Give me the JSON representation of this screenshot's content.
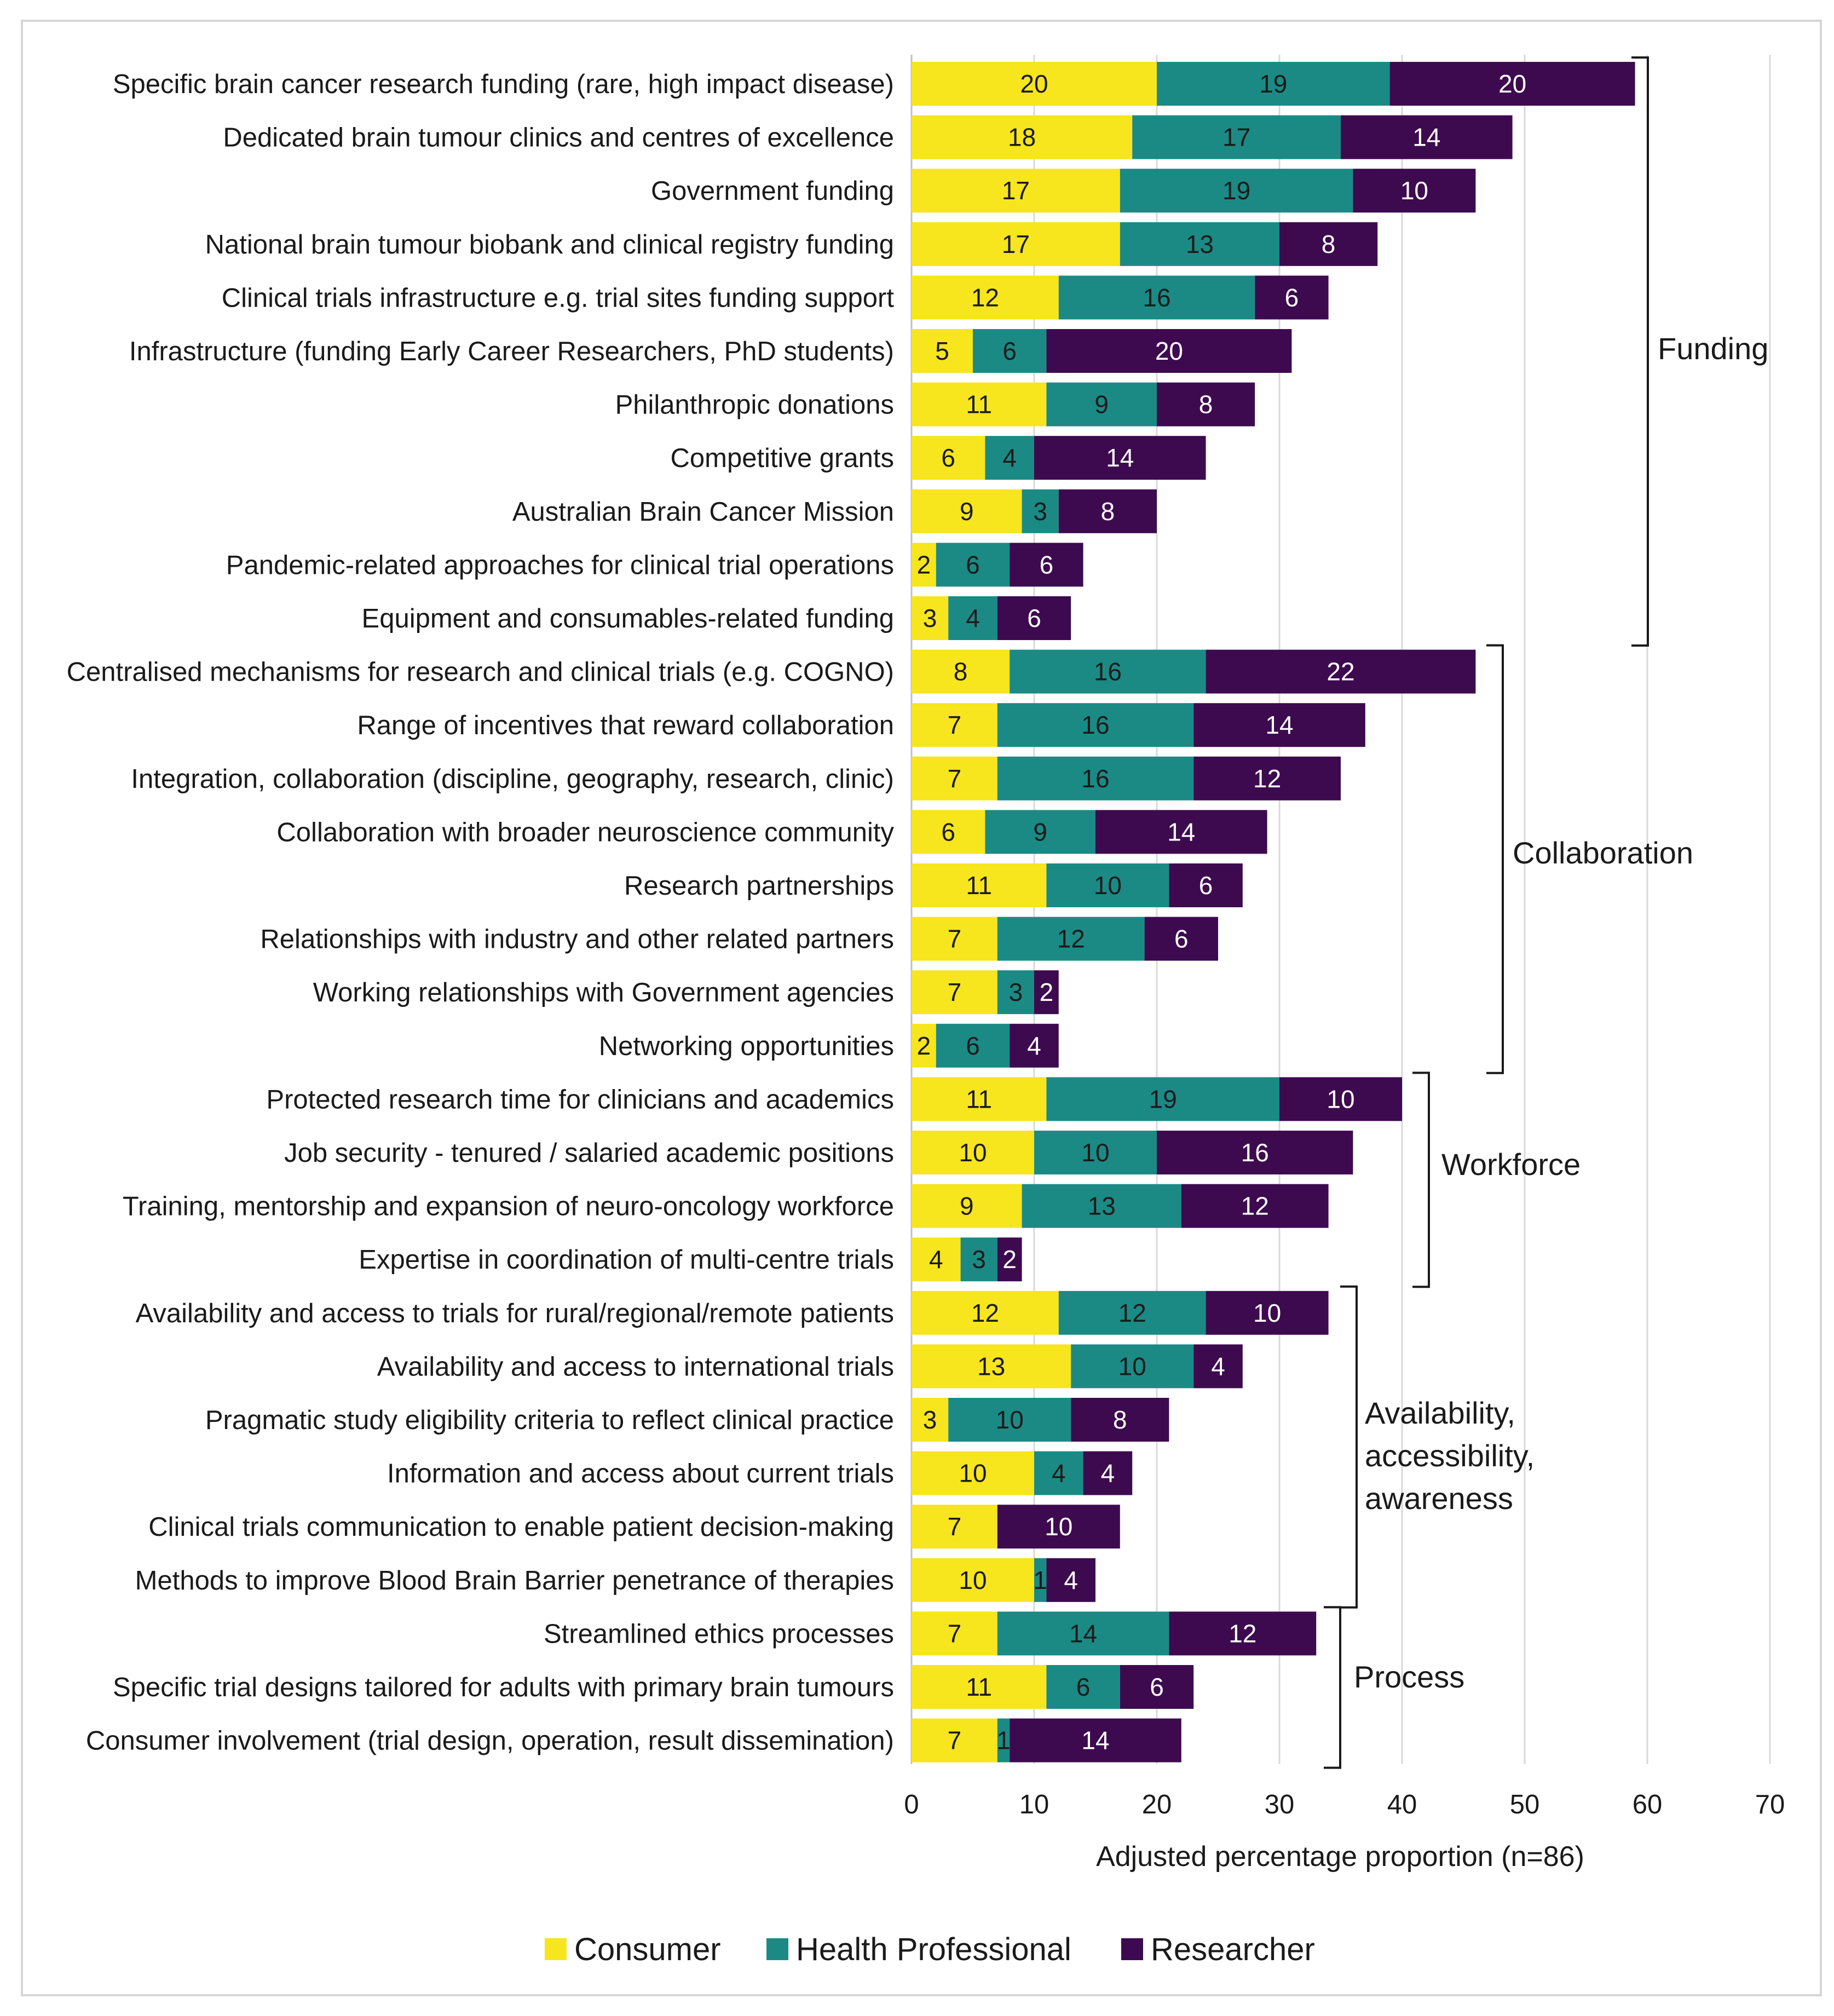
{
  "chart_data": {
    "type": "bar",
    "orientation": "horizontal",
    "stacked": true,
    "title": "",
    "xlabel": "Adjusted percentage proportion (n=86)",
    "ylabel": "",
    "xlim": [
      0,
      70
    ],
    "xticks": [
      "0",
      "10",
      "20",
      "30",
      "40",
      "50",
      "60",
      "70"
    ],
    "grid": true,
    "legend_position": "bottom",
    "categories": [
      "Specific brain cancer research funding (rare, high impact disease)",
      "Dedicated brain tumour clinics and centres of excellence",
      "Government funding",
      "National brain tumour biobank and clinical registry funding",
      "Clinical trials infrastructure e.g. trial sites funding support",
      "Infrastructure (funding Early Career Researchers, PhD students)",
      "Philanthropic donations",
      "Competitive grants",
      "Australian Brain Cancer Mission",
      "Pandemic-related approaches for clinical trial operations",
      "Equipment and consumables-related funding",
      "Centralised mechanisms for research and clinical trials (e.g. COGNO)",
      "Range of incentives that reward collaboration",
      "Integration, collaboration (discipline, geography, research, clinic)",
      "Collaboration with broader neuroscience community",
      "Research partnerships",
      "Relationships with industry and other related partners",
      "Working relationships with Government agencies",
      "Networking opportunities",
      "Protected research time for clinicians and academics",
      "Job security - tenured / salaried academic positions",
      "Training, mentorship and expansion of neuro-oncology workforce",
      "Expertise in coordination of multi-centre trials",
      "Availability and access to trials for rural/regional/remote patients",
      "Availability and access to international trials",
      "Pragmatic study eligibility criteria to reflect clinical practice",
      "Information and access about current trials",
      "Clinical trials communication to enable patient decision-making",
      "Methods to improve Blood Brain Barrier penetrance of therapies",
      "Streamlined ethics processes",
      "Specific trial designs tailored for adults with primary brain tumours",
      "Consumer involvement (trial design, operation, result dissemination)"
    ],
    "series": [
      {
        "name": "Consumer",
        "color": "#f7e51d",
        "label_color": "#1a1a1a",
        "values": [
          20,
          18,
          17,
          17,
          12,
          5,
          11,
          6,
          9,
          2,
          3,
          8,
          7,
          7,
          6,
          11,
          7,
          7,
          2,
          11,
          10,
          9,
          4,
          12,
          13,
          3,
          10,
          7,
          10,
          7,
          11,
          7
        ],
        "labels": [
          "20",
          "18",
          "17",
          "17",
          "12",
          "5",
          "11",
          "6",
          "9",
          "2",
          "3",
          "8",
          "7",
          "7",
          "6",
          "11",
          "7",
          "7",
          "2",
          "11",
          "10",
          "9",
          "4",
          "12",
          "13",
          "3",
          "10",
          "7",
          "10",
          "7",
          "11",
          "7"
        ]
      },
      {
        "name": "Health Professional",
        "color": "#1b8a85",
        "label_color": "#1a1a1a",
        "values": [
          19,
          17,
          19,
          13,
          16,
          6,
          9,
          4,
          3,
          6,
          4,
          16,
          16,
          16,
          9,
          10,
          12,
          3,
          6,
          19,
          10,
          13,
          3,
          12,
          10,
          10,
          4,
          0,
          1,
          14,
          6,
          1
        ],
        "labels": [
          "19",
          "17",
          "19",
          "13",
          "16",
          "6",
          "9",
          "4",
          "3",
          "6",
          "4",
          "16",
          "16",
          "16",
          "9",
          "10",
          "12",
          "3",
          "6",
          "19",
          "10",
          "13",
          "3",
          "12",
          "10",
          "10",
          "4",
          "",
          "1",
          "14",
          "6",
          "1"
        ]
      },
      {
        "name": "Researcher",
        "color": "#3d0a4f",
        "label_color": "#ffffff",
        "values": [
          20,
          14,
          10,
          8,
          6,
          20,
          8,
          14,
          8,
          6,
          6,
          22,
          14,
          12,
          14,
          6,
          6,
          2,
          4,
          10,
          16,
          12,
          2,
          10,
          4,
          8,
          4,
          10,
          4,
          12,
          6,
          14
        ],
        "labels": [
          "20",
          "14",
          "10",
          "8",
          "6",
          "20",
          "8",
          "14",
          "8",
          "6",
          "6",
          "22",
          "14",
          "12",
          "14",
          "6",
          "6",
          "2",
          "4",
          "10",
          "16",
          "12",
          "2",
          "10",
          "4",
          "8",
          "4",
          "10",
          "4",
          "12",
          "6",
          "14"
        ]
      }
    ],
    "groups": [
      {
        "label": "Funding",
        "lines": [
          "Funding"
        ],
        "from": 0,
        "to": 10
      },
      {
        "label": "Collaboration",
        "lines": [
          "Collaboration"
        ],
        "from": 11,
        "to": 18
      },
      {
        "label": "Workforce",
        "lines": [
          "Workforce"
        ],
        "from": 19,
        "to": 22
      },
      {
        "label": "Availability, accessibility, awareness",
        "lines": [
          "Availability,",
          "accessibility,",
          "awareness"
        ],
        "from": 23,
        "to": 28
      },
      {
        "label": "Process",
        "lines": [
          "Process"
        ],
        "from": 29,
        "to": 31
      }
    ]
  }
}
